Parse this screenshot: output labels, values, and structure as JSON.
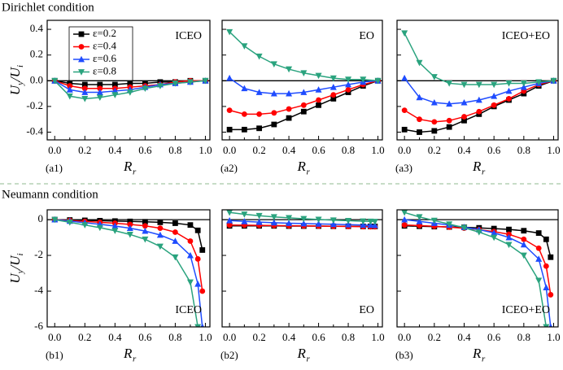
{
  "headings": [
    "Dirichlet condition",
    "Neumann condition"
  ],
  "ylabel": [
    "U",
    "y",
    "/U",
    "i"
  ],
  "chart_data": [
    {
      "type": "line",
      "panel_label": "(a1)",
      "annotation": "ICEO",
      "annotation_corner": "top-right",
      "xlabel": "R",
      "xlabel_sub": "r",
      "legend": "top-left",
      "show_ytick_labels": true,
      "x": [
        0,
        0.1,
        0.2,
        0.3,
        0.4,
        0.5,
        0.6,
        0.7,
        0.8,
        0.9,
        1.0
      ],
      "xlim": [
        -0.05,
        1.03
      ],
      "ylim": [
        -0.46,
        0.47
      ],
      "xticks": [
        {
          "value": 0,
          "label": "0.0"
        },
        0.2,
        0.4,
        0.6,
        0.8,
        {
          "value": 1,
          "label": "1.0"
        }
      ],
      "yticks": [
        -0.4,
        -0.2,
        {
          "value": 0,
          "label": "0.0"
        },
        0.2,
        0.4
      ],
      "series": [
        {
          "name": "ε=0.2",
          "color": "#000000",
          "marker": "square",
          "values": [
            0,
            -0.02,
            -0.03,
            -0.03,
            -0.03,
            -0.02,
            -0.02,
            -0.01,
            -0.01,
            0,
            0
          ]
        },
        {
          "name": "ε=0.4",
          "color": "#ff0000",
          "marker": "circle",
          "values": [
            0,
            -0.04,
            -0.06,
            -0.06,
            -0.06,
            -0.05,
            -0.04,
            -0.03,
            -0.01,
            0,
            0
          ]
        },
        {
          "name": "ε=0.6",
          "color": "#1f4cff",
          "marker": "triangle-up",
          "values": [
            0,
            -0.07,
            -0.09,
            -0.09,
            -0.08,
            -0.07,
            -0.05,
            -0.03,
            -0.02,
            -0.01,
            0
          ]
        },
        {
          "name": "ε=0.8",
          "color": "#2aa37e",
          "marker": "triangle-down",
          "values": [
            0,
            -0.12,
            -0.14,
            -0.13,
            -0.11,
            -0.09,
            -0.06,
            -0.04,
            -0.02,
            -0.01,
            0
          ]
        }
      ]
    },
    {
      "type": "line",
      "panel_label": "(a2)",
      "annotation": "EO",
      "annotation_corner": "top-right",
      "xlabel": "R",
      "xlabel_sub": "r",
      "show_ytick_labels": false,
      "x": [
        0,
        0.1,
        0.2,
        0.3,
        0.4,
        0.5,
        0.6,
        0.7,
        0.8,
        0.9,
        1.0
      ],
      "xlim": [
        -0.05,
        1.03
      ],
      "ylim": [
        -0.46,
        0.47
      ],
      "xticks": [
        {
          "value": 0,
          "label": "0.0"
        },
        0.2,
        0.4,
        0.6,
        0.8,
        {
          "value": 1,
          "label": "1.0"
        }
      ],
      "yticks": [
        -0.4,
        -0.2,
        0,
        0.2,
        0.4
      ],
      "series": [
        {
          "color": "#000000",
          "marker": "square",
          "values": [
            -0.38,
            -0.38,
            -0.37,
            -0.34,
            -0.29,
            -0.24,
            -0.19,
            -0.14,
            -0.09,
            -0.04,
            0
          ]
        },
        {
          "color": "#ff0000",
          "marker": "circle",
          "values": [
            -0.23,
            -0.26,
            -0.26,
            -0.25,
            -0.22,
            -0.19,
            -0.15,
            -0.11,
            -0.07,
            -0.03,
            0
          ]
        },
        {
          "color": "#1f4cff",
          "marker": "triangle-up",
          "values": [
            0.02,
            -0.06,
            -0.09,
            -0.1,
            -0.1,
            -0.09,
            -0.07,
            -0.05,
            -0.03,
            -0.01,
            0
          ]
        },
        {
          "color": "#2aa37e",
          "marker": "triangle-down",
          "values": [
            0.38,
            0.27,
            0.19,
            0.13,
            0.09,
            0.06,
            0.04,
            0.02,
            0.01,
            0.01,
            0
          ]
        }
      ]
    },
    {
      "type": "line",
      "panel_label": "(a3)",
      "annotation": "ICEO+EO",
      "annotation_corner": "top-right",
      "xlabel": "R",
      "xlabel_sub": "r",
      "show_ytick_labels": false,
      "x": [
        0,
        0.1,
        0.2,
        0.3,
        0.4,
        0.5,
        0.6,
        0.7,
        0.8,
        0.9,
        1.0
      ],
      "xlim": [
        -0.05,
        1.03
      ],
      "ylim": [
        -0.46,
        0.47
      ],
      "xticks": [
        {
          "value": 0,
          "label": "0.0"
        },
        0.2,
        0.4,
        0.6,
        0.8,
        {
          "value": 1,
          "label": "1.0"
        }
      ],
      "yticks": [
        -0.4,
        -0.2,
        0,
        0.2,
        0.4
      ],
      "series": [
        {
          "color": "#000000",
          "marker": "square",
          "values": [
            -0.38,
            -0.4,
            -0.39,
            -0.36,
            -0.31,
            -0.26,
            -0.2,
            -0.15,
            -0.1,
            -0.04,
            0
          ]
        },
        {
          "color": "#ff0000",
          "marker": "circle",
          "values": [
            -0.23,
            -0.3,
            -0.32,
            -0.31,
            -0.28,
            -0.24,
            -0.19,
            -0.14,
            -0.08,
            -0.03,
            0
          ]
        },
        {
          "color": "#1f4cff",
          "marker": "triangle-up",
          "values": [
            0.02,
            -0.13,
            -0.17,
            -0.18,
            -0.17,
            -0.15,
            -0.12,
            -0.08,
            -0.05,
            -0.02,
            0
          ]
        },
        {
          "color": "#2aa37e",
          "marker": "triangle-down",
          "values": [
            0.37,
            0.14,
            0.03,
            -0.02,
            -0.03,
            -0.03,
            -0.03,
            -0.02,
            -0.02,
            -0.01,
            0
          ]
        }
      ]
    },
    {
      "type": "line",
      "panel_label": "(b1)",
      "annotation": "ICEO",
      "annotation_corner": "bottom-right",
      "xlabel": "R",
      "xlabel_sub": "r",
      "show_ytick_labels": true,
      "x": [
        0,
        0.1,
        0.2,
        0.3,
        0.4,
        0.5,
        0.6,
        0.7,
        0.8,
        0.9,
        0.95,
        0.98
      ],
      "xlim": [
        -0.05,
        1.03
      ],
      "ylim": [
        -6,
        0.55
      ],
      "xticks": [
        {
          "value": 0,
          "label": "0.0"
        },
        0.2,
        0.4,
        0.6,
        0.8,
        {
          "value": 1,
          "label": "1.0"
        }
      ],
      "yticks": [
        -6,
        -4,
        -2,
        0
      ],
      "series": [
        {
          "color": "#000000",
          "marker": "square",
          "values": [
            0,
            -0.02,
            -0.04,
            -0.06,
            -0.08,
            -0.1,
            -0.12,
            -0.15,
            -0.2,
            -0.3,
            -0.6,
            -1.7
          ]
        },
        {
          "color": "#ff0000",
          "marker": "circle",
          "values": [
            0,
            -0.05,
            -0.1,
            -0.15,
            -0.2,
            -0.27,
            -0.35,
            -0.48,
            -0.7,
            -1.2,
            -2.2,
            -4.0
          ]
        },
        {
          "color": "#1f4cff",
          "marker": "triangle-up",
          "values": [
            0,
            -0.08,
            -0.17,
            -0.26,
            -0.36,
            -0.48,
            -0.64,
            -0.86,
            -1.2,
            -2.0,
            -3.6,
            -6
          ]
        },
        {
          "color": "#2aa37e",
          "marker": "triangle-down",
          "values": [
            0,
            -0.15,
            -0.3,
            -0.45,
            -0.62,
            -0.83,
            -1.1,
            -1.5,
            -2.1,
            -3.5,
            -6,
            null
          ]
        }
      ]
    },
    {
      "type": "line",
      "panel_label": "(b2)",
      "annotation": "EO",
      "annotation_corner": "bottom-right",
      "xlabel": "R",
      "xlabel_sub": "r",
      "show_ytick_labels": false,
      "x": [
        0,
        0.1,
        0.2,
        0.3,
        0.4,
        0.5,
        0.6,
        0.7,
        0.8,
        0.9,
        0.95,
        0.98
      ],
      "xlim": [
        -0.05,
        1.03
      ],
      "ylim": [
        -6,
        0.55
      ],
      "xticks": [
        {
          "value": 0,
          "label": "0.0"
        },
        0.2,
        0.4,
        0.6,
        0.8,
        {
          "value": 1,
          "label": "1.0"
        }
      ],
      "yticks": [
        -6,
        -4,
        -2,
        0
      ],
      "series": [
        {
          "color": "#000000",
          "marker": "square",
          "values": [
            -0.35,
            -0.35,
            -0.35,
            -0.35,
            -0.36,
            -0.36,
            -0.36,
            -0.37,
            -0.37,
            -0.38,
            -0.38,
            -0.38
          ]
        },
        {
          "color": "#ff0000",
          "marker": "circle",
          "values": [
            -0.3,
            -0.31,
            -0.32,
            -0.33,
            -0.34,
            -0.35,
            -0.36,
            -0.37,
            -0.38,
            -0.39,
            -0.4,
            -0.4
          ]
        },
        {
          "color": "#1f4cff",
          "marker": "triangle-up",
          "values": [
            -0.05,
            -0.1,
            -0.14,
            -0.17,
            -0.2,
            -0.22,
            -0.24,
            -0.26,
            -0.28,
            -0.3,
            -0.31,
            -0.32
          ]
        },
        {
          "color": "#2aa37e",
          "marker": "triangle-down",
          "values": [
            0.4,
            0.3,
            0.22,
            0.15,
            0.1,
            0.05,
            0.01,
            -0.03,
            -0.06,
            -0.09,
            -0.1,
            -0.11
          ]
        }
      ]
    },
    {
      "type": "line",
      "panel_label": "(b3)",
      "annotation": "ICEO+EO",
      "annotation_corner": "bottom-right",
      "xlabel": "R",
      "xlabel_sub": "r",
      "show_ytick_labels": false,
      "x": [
        0,
        0.1,
        0.2,
        0.3,
        0.4,
        0.5,
        0.6,
        0.7,
        0.8,
        0.9,
        0.95,
        0.98
      ],
      "xlim": [
        -0.05,
        1.03
      ],
      "ylim": [
        -6,
        0.55
      ],
      "xticks": [
        {
          "value": 0,
          "label": "0.0"
        },
        0.2,
        0.4,
        0.6,
        0.8,
        {
          "value": 1,
          "label": "1.0"
        }
      ],
      "yticks": [
        -6,
        -4,
        -2,
        0
      ],
      "series": [
        {
          "color": "#000000",
          "marker": "square",
          "values": [
            -0.35,
            -0.37,
            -0.39,
            -0.41,
            -0.43,
            -0.46,
            -0.5,
            -0.55,
            -0.62,
            -0.75,
            -1.1,
            -2.1
          ]
        },
        {
          "color": "#ff0000",
          "marker": "circle",
          "values": [
            -0.3,
            -0.33,
            -0.37,
            -0.42,
            -0.48,
            -0.56,
            -0.67,
            -0.82,
            -1.1,
            -1.6,
            -2.6,
            -4.2
          ]
        },
        {
          "color": "#1f4cff",
          "marker": "triangle-up",
          "values": [
            0,
            -0.1,
            -0.2,
            -0.3,
            -0.42,
            -0.56,
            -0.74,
            -1.0,
            -1.4,
            -2.2,
            -3.8,
            -6
          ]
        },
        {
          "color": "#2aa37e",
          "marker": "triangle-down",
          "values": [
            0.4,
            0.15,
            -0.05,
            -0.25,
            -0.45,
            -0.7,
            -1.0,
            -1.4,
            -2.0,
            -3.4,
            -6,
            null
          ]
        }
      ]
    }
  ]
}
